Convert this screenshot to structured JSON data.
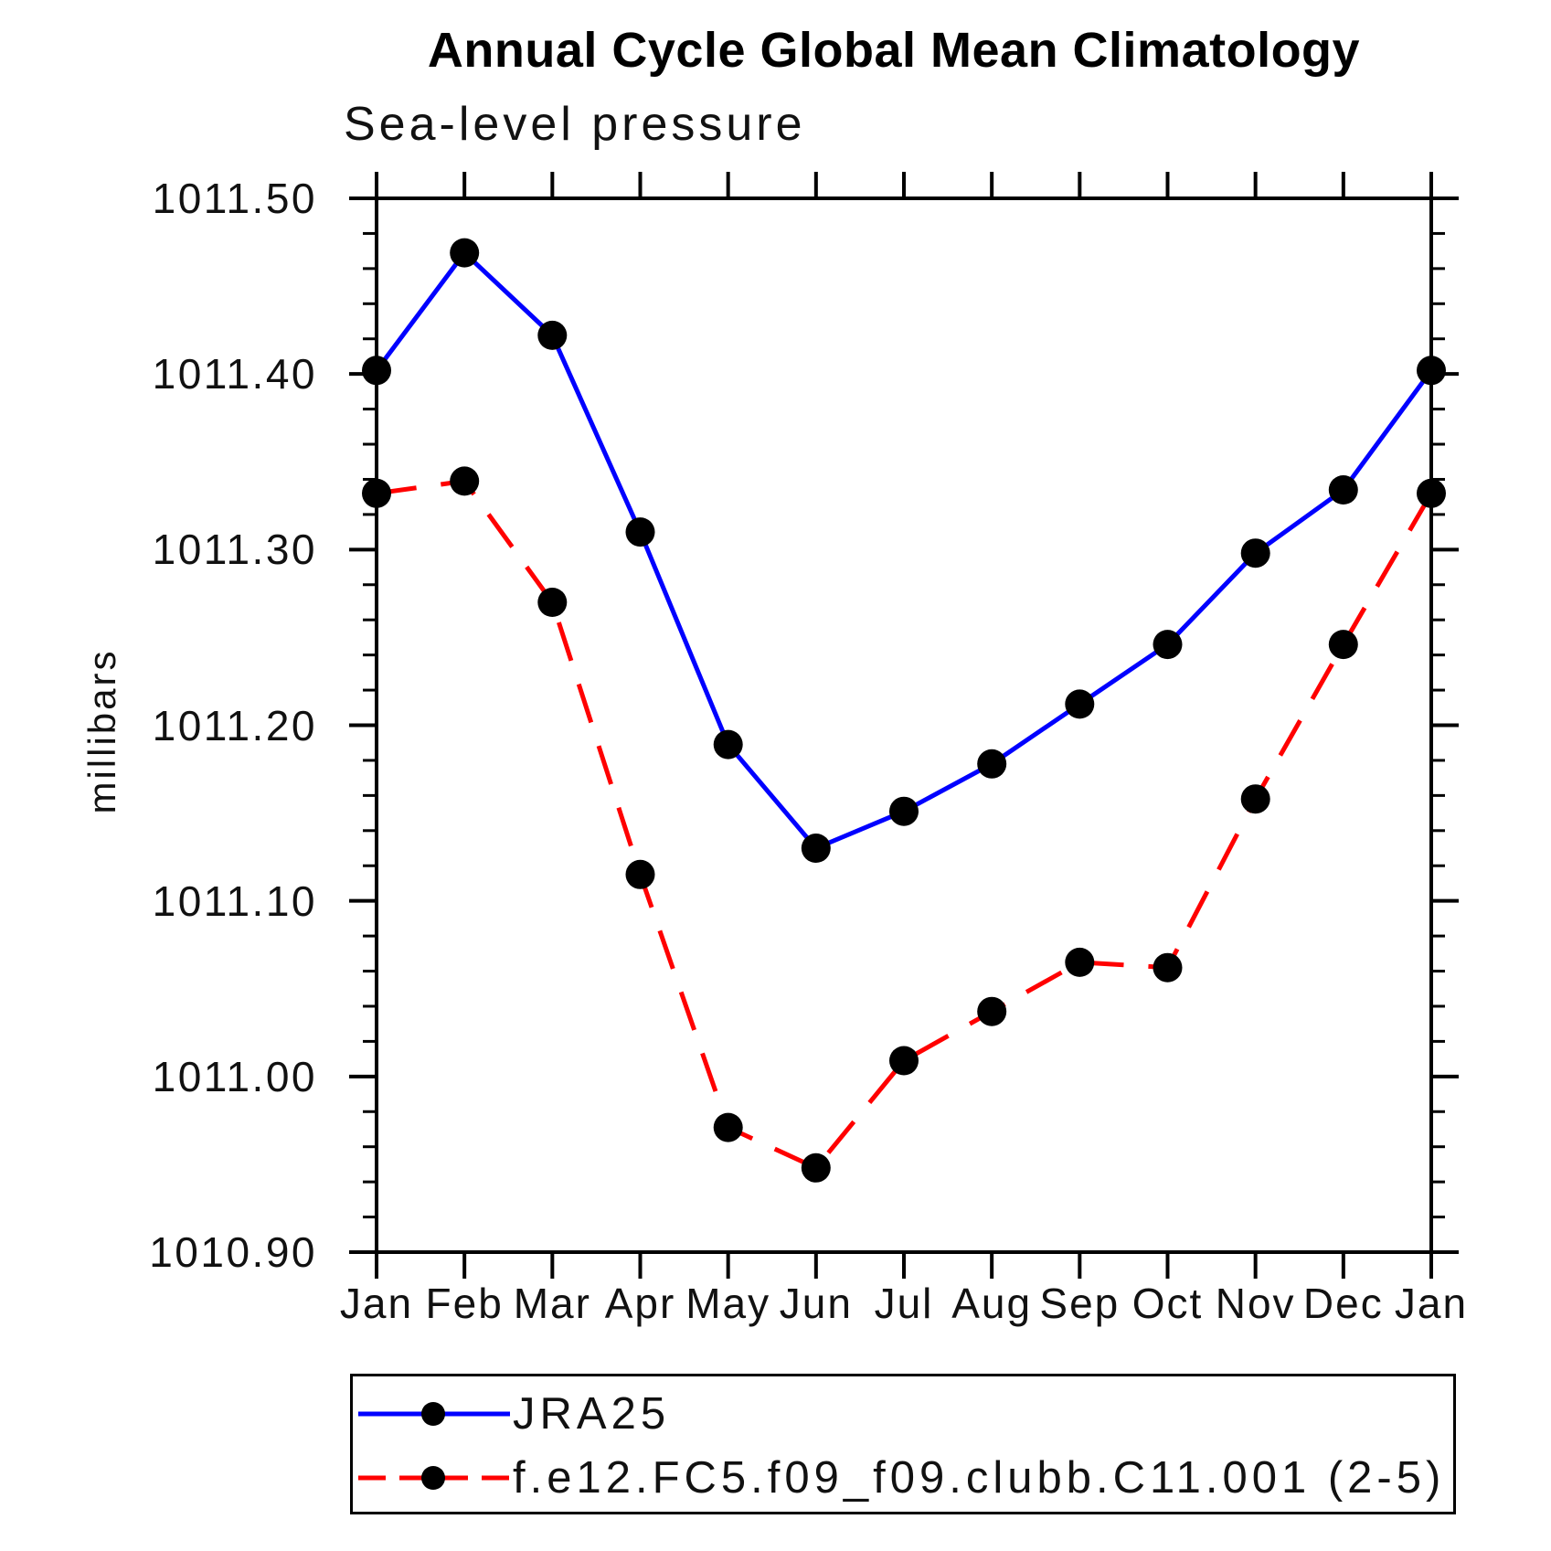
{
  "title": "Annual Cycle Global Mean Climatology",
  "subtitle": "Sea-level pressure",
  "y_axis": {
    "label": "millibars"
  },
  "legend": [
    {
      "label": "JRA25",
      "color": "#0000ff",
      "line_style": "solid",
      "marker": "filled-circle"
    },
    {
      "label": "f.e12.FC5.f09_f09.clubb.C11.001 (2-5)",
      "color": "#ff0000",
      "line_style": "dashed",
      "marker": "filled-circle"
    }
  ],
  "chart_data": {
    "type": "line",
    "title": "Annual Cycle Global Mean Climatology",
    "subtitle": "Sea-level pressure",
    "xlabel": "",
    "ylabel": "millibars",
    "categories": [
      "Jan",
      "Feb",
      "Mar",
      "Apr",
      "May",
      "Jun",
      "Jul",
      "Aug",
      "Sep",
      "Oct",
      "Nov",
      "Dec",
      "Jan"
    ],
    "ylim": [
      1010.9,
      1011.5
    ],
    "y_major_step": 0.1,
    "y_minor_step": 0.02,
    "y_tick_labels": [
      "1011.50",
      "1011.40",
      "1011.30",
      "1011.20",
      "1011.10",
      "1011.00",
      "1010.90"
    ],
    "grid": false,
    "legend_position": "bottom",
    "axis_color": "#000000",
    "marker_color": "#000000",
    "series": [
      {
        "name": "JRA25",
        "color": "#0000ff",
        "line_style": "solid",
        "marker": "filled-circle",
        "values": [
          1011.402,
          1011.469,
          1011.422,
          1011.31,
          1011.189,
          1011.13,
          1011.151,
          1011.178,
          1011.212,
          1011.246,
          1011.298,
          1011.334,
          1011.402
        ]
      },
      {
        "name": "f.e12.FC5.f09_f09.clubb.C11.001 (2-5)",
        "color": "#ff0000",
        "line_style": "dashed",
        "marker": "filled-circle",
        "values": [
          1011.332,
          1011.339,
          1011.27,
          1011.115,
          1010.971,
          1010.948,
          1011.009,
          1011.037,
          1011.065,
          1011.062,
          1011.158,
          1011.246,
          1011.332
        ]
      }
    ]
  }
}
